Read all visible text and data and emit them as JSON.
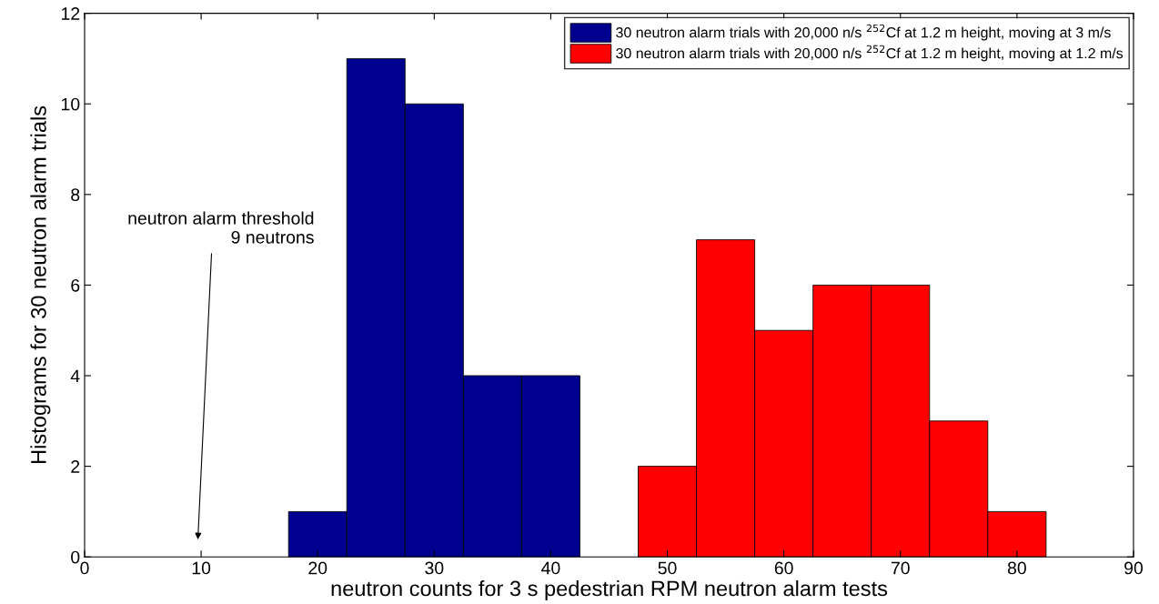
{
  "chart_data": {
    "type": "histogram",
    "xlabel": "neutron counts for 3 s pedestrian RPM neutron alarm tests",
    "ylabel": "Histograms for 30 neutron alarm trials",
    "bins": [
      17.5,
      22.5,
      27.5,
      32.5,
      37.5,
      42.5,
      47.5,
      52.5,
      57.5,
      62.5,
      67.5,
      72.5,
      77.5,
      82.5
    ],
    "series": [
      {
        "name": "30 neutron alarm trials with 20,000 n/s $^{252}$Cf at 1.2 m height, moving at 3 m/s",
        "color": "#00008f",
        "values": [
          1,
          11,
          10,
          4,
          4,
          null,
          null,
          null,
          null,
          null,
          null,
          null,
          null
        ]
      },
      {
        "name": "30 neutron alarm trials with 20,000 n/s $^{252}$Cf at 1.2 m height, moving at 1.2 m/s",
        "color": "#ff0000",
        "values": [
          null,
          null,
          null,
          null,
          null,
          null,
          2,
          7,
          5,
          6,
          6,
          3,
          1
        ]
      }
    ],
    "annotations": [
      "neutron alarm threshold\n9 neutrons"
    ],
    "xlim": [
      0,
      90
    ],
    "xticks": [
      0,
      10,
      20,
      30,
      40,
      50,
      60,
      70,
      80,
      90
    ],
    "ylim": [
      0,
      12
    ],
    "yticks": [
      0,
      2,
      4,
      6,
      8,
      10,
      12
    ],
    "grid": false,
    "legend": "top right"
  }
}
